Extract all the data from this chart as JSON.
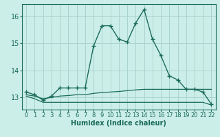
{
  "xlabel": "Humidex (Indice chaleur)",
  "background_color": "#cceee8",
  "grid_color": "#aad4ce",
  "line_color": "#1a6b5a",
  "xlim": [
    -0.5,
    22.5
  ],
  "ylim": [
    12.55,
    16.45
  ],
  "yticks": [
    13,
    14,
    15,
    16
  ],
  "xticks": [
    0,
    1,
    2,
    3,
    4,
    5,
    6,
    7,
    8,
    9,
    10,
    11,
    12,
    13,
    14,
    15,
    16,
    17,
    18,
    19,
    20,
    21,
    22
  ],
  "series1_x": [
    0,
    1,
    2,
    3,
    4,
    5,
    6,
    7,
    8,
    9,
    10,
    11,
    12,
    13,
    14,
    15,
    16,
    17,
    18,
    19,
    20,
    21,
    22
  ],
  "series1_y": [
    13.2,
    13.1,
    12.9,
    13.05,
    13.35,
    13.35,
    13.35,
    13.35,
    14.9,
    15.65,
    15.65,
    15.15,
    15.05,
    15.75,
    16.25,
    15.15,
    14.55,
    13.8,
    13.65,
    13.3,
    13.3,
    13.2,
    12.75
  ],
  "series2_x": [
    0,
    1,
    2,
    3,
    4,
    5,
    6,
    7,
    8,
    9,
    10,
    11,
    12,
    13,
    14,
    15,
    16,
    17,
    18,
    19,
    20,
    21,
    22
  ],
  "series2_y": [
    13.1,
    13.05,
    12.95,
    13.0,
    13.05,
    13.07,
    13.1,
    13.1,
    13.15,
    13.18,
    13.2,
    13.22,
    13.25,
    13.28,
    13.3,
    13.3,
    13.3,
    13.3,
    13.3,
    13.3,
    13.3,
    13.3,
    13.3
  ],
  "series3_x": [
    0,
    1,
    2,
    3,
    4,
    5,
    6,
    7,
    8,
    9,
    10,
    11,
    12,
    13,
    14,
    15,
    16,
    17,
    18,
    19,
    20,
    21,
    22
  ],
  "series3_y": [
    13.05,
    12.95,
    12.82,
    12.82,
    12.82,
    12.82,
    12.82,
    12.82,
    12.82,
    12.82,
    12.82,
    12.82,
    12.82,
    12.82,
    12.82,
    12.82,
    12.82,
    12.82,
    12.82,
    12.82,
    12.82,
    12.82,
    12.72
  ]
}
